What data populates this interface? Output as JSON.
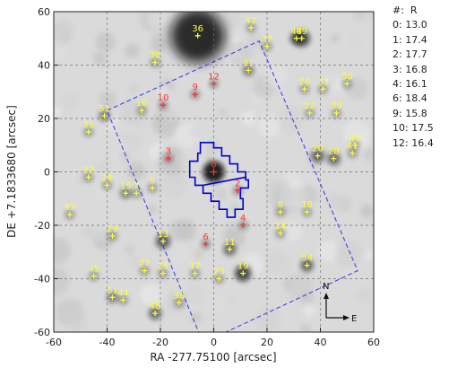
{
  "chart_data": {
    "type": "scatter",
    "xlabel": "RA -277.75100 [arcsec]",
    "ylabel": "DE +7.1833680 [arcsec]",
    "xlim": [
      -60,
      60
    ],
    "ylim": [
      -60,
      60
    ],
    "xticks": [
      "-60",
      "-40",
      "-20",
      "0",
      "20",
      "40",
      "60"
    ],
    "yticks": [
      "-60",
      "-40",
      "-20",
      "0",
      "20",
      "40",
      "60"
    ],
    "grid": true,
    "colors": {
      "catalog": "#ffff33",
      "measured": "#ff3333",
      "footprint": "#0000cc",
      "fov": "#3333ee"
    },
    "legend_header": "#:  R",
    "legend_rows": [
      "0: 13.0",
      "1: 17.4",
      "2: 17.7",
      "3: 16.8",
      "4: 16.1",
      "6: 18.4",
      "9: 15.8",
      "10: 17.5",
      "12: 16.4"
    ],
    "compass": {
      "north": "N",
      "east": "E"
    },
    "field_sources": [
      {
        "name": "36",
        "x": -6,
        "y": 51,
        "color": "yellow"
      },
      {
        "name": "42",
        "x": 14,
        "y": 54,
        "color": "yellow"
      },
      {
        "name": "37",
        "x": 20,
        "y": 47,
        "color": "yellow"
      },
      {
        "name": "48",
        "x": 31,
        "y": 50,
        "color": "yellow"
      },
      {
        "name": "49",
        "x": 33,
        "y": 50,
        "color": "yellow"
      },
      {
        "name": "30",
        "x": -22,
        "y": 41,
        "color": "yellow"
      },
      {
        "name": "31",
        "x": 13,
        "y": 38,
        "color": "yellow"
      },
      {
        "name": "50",
        "x": 50,
        "y": 33,
        "color": "yellow"
      },
      {
        "name": "26",
        "x": 34,
        "y": 31,
        "color": "yellow"
      },
      {
        "name": "33",
        "x": 41,
        "y": 31,
        "color": "yellow"
      },
      {
        "name": "51",
        "x": -41,
        "y": 21,
        "color": "yellow"
      },
      {
        "name": "16",
        "x": -27,
        "y": 23,
        "color": "yellow"
      },
      {
        "name": "22",
        "x": 36,
        "y": 22,
        "color": "yellow"
      },
      {
        "name": "39",
        "x": 46,
        "y": 22,
        "color": "yellow"
      },
      {
        "name": "35",
        "x": -47,
        "y": 15,
        "color": "yellow"
      },
      {
        "name": "40",
        "x": 53,
        "y": 10,
        "color": "yellow"
      },
      {
        "name": "41",
        "x": 52,
        "y": 7,
        "color": "yellow"
      },
      {
        "name": "20",
        "x": 39,
        "y": 6,
        "color": "yellow"
      },
      {
        "name": "28",
        "x": 45,
        "y": 5,
        "color": "yellow"
      },
      {
        "name": "32",
        "x": -47,
        "y": -2,
        "color": "yellow"
      },
      {
        "name": "24",
        "x": -40,
        "y": -5,
        "color": "yellow"
      },
      {
        "name": "15",
        "x": -33,
        "y": -8,
        "color": "yellow"
      },
      {
        "name": "7",
        "x": -29,
        "y": -8,
        "color": "yellow"
      },
      {
        "name": "5",
        "x": -23,
        "y": -6,
        "color": "yellow"
      },
      {
        "name": "43",
        "x": -54,
        "y": -16,
        "color": "yellow"
      },
      {
        "name": "18",
        "x": 35,
        "y": -15,
        "color": "yellow"
      },
      {
        "name": "8",
        "x": 25,
        "y": -15,
        "color": "yellow"
      },
      {
        "name": "14",
        "x": 25,
        "y": -23,
        "color": "yellow"
      },
      {
        "name": "29",
        "x": -38,
        "y": -24,
        "color": "yellow"
      },
      {
        "name": "13",
        "x": -19,
        "y": -26,
        "color": "yellow"
      },
      {
        "name": "11",
        "x": 6,
        "y": -29,
        "color": "yellow"
      },
      {
        "name": "27",
        "x": -26,
        "y": -37,
        "color": "yellow"
      },
      {
        "name": "25",
        "x": -19,
        "y": -38,
        "color": "yellow"
      },
      {
        "name": "17",
        "x": -7,
        "y": -38,
        "color": "yellow"
      },
      {
        "name": "23",
        "x": 2,
        "y": -40,
        "color": "yellow"
      },
      {
        "name": "19",
        "x": 11,
        "y": -38,
        "color": "yellow"
      },
      {
        "name": "54",
        "x": 35,
        "y": -35,
        "color": "yellow"
      },
      {
        "name": "45",
        "x": -45,
        "y": -39,
        "color": "yellow"
      },
      {
        "name": "51",
        "x": -38,
        "y": -47,
        "color": "yellow"
      },
      {
        "name": "44",
        "x": -34,
        "y": -48,
        "color": "yellow"
      },
      {
        "name": "48",
        "x": -22,
        "y": -53,
        "color": "yellow"
      },
      {
        "name": "38",
        "x": -13,
        "y": -49,
        "color": "yellow"
      },
      {
        "name": "12",
        "x": 0,
        "y": 33,
        "color": "red"
      },
      {
        "name": "9",
        "x": -7,
        "y": 29,
        "color": "red"
      },
      {
        "name": "10",
        "x": -19,
        "y": 25,
        "color": "red"
      },
      {
        "name": "3",
        "x": -17,
        "y": 5,
        "color": "red"
      },
      {
        "name": "0",
        "x": 0,
        "y": 0,
        "color": "red"
      },
      {
        "name": "2",
        "x": 9,
        "y": -7,
        "color": "red"
      },
      {
        "name": "4",
        "x": 11,
        "y": -20,
        "color": "red"
      },
      {
        "name": "6",
        "x": -3,
        "y": -27,
        "color": "red"
      }
    ],
    "slit_footprint": [
      [
        -5,
        11
      ],
      [
        0,
        11
      ],
      [
        0,
        9
      ],
      [
        3,
        9
      ],
      [
        3,
        6
      ],
      [
        6,
        6
      ],
      [
        6,
        3
      ],
      [
        9,
        3
      ],
      [
        9,
        0
      ],
      [
        12,
        0
      ],
      [
        12,
        -3
      ],
      [
        13,
        -3
      ],
      [
        13,
        -6
      ],
      [
        10,
        -6
      ],
      [
        10,
        -10
      ],
      [
        11,
        -10
      ],
      [
        11,
        -14
      ],
      [
        8,
        -14
      ],
      [
        8,
        -17
      ],
      [
        5,
        -17
      ],
      [
        5,
        -14
      ],
      [
        2,
        -14
      ],
      [
        2,
        -11
      ],
      [
        -1,
        -11
      ],
      [
        -1,
        -8
      ],
      [
        -4,
        -8
      ],
      [
        -4,
        -5
      ],
      [
        -7,
        -5
      ],
      [
        -7,
        -2
      ],
      [
        -9,
        -2
      ],
      [
        -9,
        4
      ],
      [
        -6,
        4
      ],
      [
        -6,
        7
      ],
      [
        -5,
        7
      ]
    ],
    "slit_divider": [
      [
        -4,
        -5
      ],
      [
        12,
        -2
      ]
    ],
    "field_of_view": [
      [
        -40,
        23
      ],
      [
        17,
        49
      ],
      [
        54,
        -37
      ],
      [
        -4,
        -64
      ]
    ]
  }
}
